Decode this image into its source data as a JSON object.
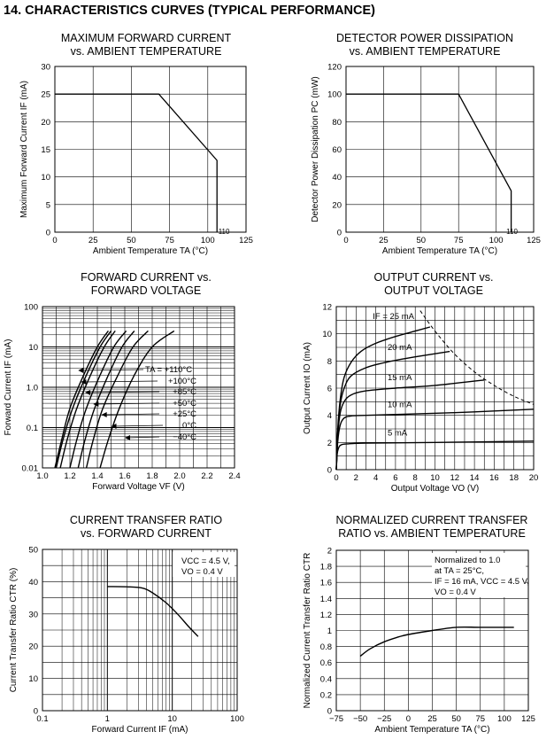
{
  "page_title": "14.  CHARACTERISTICS CURVES (TYPICAL PERFORMANCE)",
  "chart_data": [
    {
      "type": "line",
      "title1": "MAXIMUM FORWARD CURRENT",
      "title2": "vs. AMBIENT TEMPERATURE",
      "xlabel": "Ambient Temperature  TA (°C)",
      "ylabel": "Maximum Forward Current  IF (mA)",
      "xlim": [
        0,
        125
      ],
      "ylim": [
        0,
        30
      ],
      "x_ticks": [
        0,
        25,
        50,
        75,
        100,
        125
      ],
      "y_ticks": [
        0,
        5,
        10,
        15,
        20,
        25,
        30
      ],
      "x_ticks_text": [
        "0",
        "25",
        "50",
        "75",
        "100",
        "125"
      ],
      "y_ticks_text": [
        "0",
        "5",
        "10",
        "15",
        "20",
        "25",
        "30"
      ],
      "extra_tick": {
        "value": 110,
        "label": "110"
      },
      "grid": true,
      "series": [
        {
          "x": [
            0,
            68,
            106,
            106
          ],
          "y": [
            25,
            25,
            13,
            0
          ]
        }
      ]
    },
    {
      "type": "line",
      "title1": "DETECTOR POWER DISSIPATION",
      "title2": "vs. AMBIENT TEMPERATURE",
      "xlabel": "Ambient Temperature  TA (°C)",
      "ylabel": "Detector Power Dissipation  PC (mW)",
      "xlim": [
        0,
        125
      ],
      "ylim": [
        0,
        120
      ],
      "x_ticks": [
        0,
        25,
        50,
        75,
        100,
        125
      ],
      "y_ticks": [
        0,
        20,
        40,
        60,
        80,
        100,
        120
      ],
      "x_ticks_text": [
        "0",
        "25",
        "50",
        "75",
        "100",
        "125"
      ],
      "y_ticks_text": [
        "0",
        "20",
        "40",
        "60",
        "80",
        "100",
        "120"
      ],
      "extra_tick": {
        "value": 110,
        "label": "110"
      },
      "grid": true,
      "series": [
        {
          "x": [
            0,
            75,
            110,
            110
          ],
          "y": [
            100,
            100,
            30,
            0
          ]
        }
      ]
    },
    {
      "type": "line",
      "title1": "FORWARD CURRENT vs.",
      "title2": "FORWARD VOLTAGE",
      "xlabel": "Forward Voltage  VF (V)",
      "ylabel": "Forward Current  IF (mA)",
      "xlim": [
        1.0,
        2.4
      ],
      "ylim": [
        0.01,
        100
      ],
      "yscale": "log",
      "x_ticks": [
        1.0,
        1.2,
        1.4,
        1.6,
        1.8,
        2.0,
        2.2,
        2.4
      ],
      "x_ticks_text": [
        "1.0",
        "1.2",
        "1.4",
        "1.6",
        "1.8",
        "2.0",
        "2.2",
        "2.4"
      ],
      "y_ticks": [
        0.01,
        0.1,
        1.0,
        10,
        100
      ],
      "y_ticks_text": [
        "0.01",
        "0.1",
        "1.0",
        "10",
        "100"
      ],
      "grid": true,
      "annotations": [
        "TA = +110°C",
        "+100°C",
        "+85°C",
        "+50°C",
        "+25°C",
        "0°C",
        "−40°C"
      ],
      "series": [
        {
          "name": "TA = +110°C",
          "x": [
            1.09,
            1.14,
            1.2,
            1.3,
            1.4,
            1.48
          ],
          "y": [
            0.01,
            0.05,
            0.3,
            2.0,
            10,
            25
          ]
        },
        {
          "name": "+100°C",
          "x": [
            1.1,
            1.15,
            1.22,
            1.32,
            1.42,
            1.5
          ],
          "y": [
            0.01,
            0.05,
            0.3,
            2.0,
            10,
            25
          ]
        },
        {
          "name": "+85°C",
          "x": [
            1.13,
            1.18,
            1.25,
            1.35,
            1.45,
            1.53
          ],
          "y": [
            0.01,
            0.05,
            0.3,
            2.0,
            10,
            25
          ]
        },
        {
          "name": "+50°C",
          "x": [
            1.2,
            1.25,
            1.32,
            1.42,
            1.52,
            1.61
          ],
          "y": [
            0.01,
            0.05,
            0.3,
            2.0,
            10,
            25
          ]
        },
        {
          "name": "+25°C",
          "x": [
            1.26,
            1.31,
            1.38,
            1.48,
            1.58,
            1.67
          ],
          "y": [
            0.01,
            0.05,
            0.3,
            2.0,
            10,
            25
          ]
        },
        {
          "name": "0°C",
          "x": [
            1.32,
            1.37,
            1.44,
            1.55,
            1.66,
            1.77
          ],
          "y": [
            0.01,
            0.05,
            0.3,
            2.0,
            10,
            25
          ]
        },
        {
          "name": "−40°C",
          "x": [
            1.42,
            1.48,
            1.56,
            1.67,
            1.8,
            1.96
          ],
          "y": [
            0.01,
            0.05,
            0.3,
            2.0,
            10,
            25
          ]
        }
      ]
    },
    {
      "type": "line",
      "title1": "OUTPUT CURRENT vs.",
      "title2": "OUTPUT VOLTAGE",
      "xlabel": "Output Voltage  VO (V)",
      "ylabel": "Output Current  IO (mA)",
      "xlim": [
        0,
        20
      ],
      "ylim": [
        0,
        12
      ],
      "x_ticks": [
        0,
        2,
        4,
        6,
        8,
        10,
        12,
        14,
        16,
        18,
        20
      ],
      "x_ticks_text": [
        "0",
        "2",
        "4",
        "6",
        "8",
        "10",
        "12",
        "14",
        "16",
        "18",
        "20"
      ],
      "y_ticks": [
        0,
        2,
        4,
        6,
        8,
        10,
        12
      ],
      "y_ticks_text": [
        "0",
        "2",
        "4",
        "6",
        "8",
        "10",
        "12"
      ],
      "grid": true,
      "annotations": [
        "IF = 25 mA",
        "20 mA",
        "15 mA",
        "10 mA",
        "5 mA"
      ],
      "series": [
        {
          "name": "IF = 25 mA",
          "x": [
            0,
            0.15,
            0.4,
            0.8,
            1.5,
            2.5,
            4,
            6,
            8,
            9.5
          ],
          "y": [
            0,
            3.0,
            5.2,
            6.8,
            7.9,
            8.7,
            9.3,
            9.8,
            10.2,
            10.5
          ]
        },
        {
          "name": "20 mA",
          "x": [
            0,
            0.15,
            0.4,
            0.8,
            1.5,
            3,
            5,
            8,
            11.5
          ],
          "y": [
            0,
            2.8,
            4.8,
            6.0,
            6.9,
            7.5,
            7.9,
            8.3,
            8.7
          ]
        },
        {
          "name": "15 mA",
          "x": [
            0,
            0.15,
            0.4,
            0.8,
            1.5,
            3,
            6,
            10,
            15
          ],
          "y": [
            0,
            2.5,
            4.2,
            5.0,
            5.5,
            5.8,
            6.0,
            6.2,
            6.6
          ]
        },
        {
          "name": "10 mA",
          "x": [
            0,
            0.15,
            0.4,
            0.8,
            1.5,
            3,
            8,
            14,
            20
          ],
          "y": [
            0,
            2.1,
            3.3,
            3.8,
            3.95,
            4.0,
            4.1,
            4.25,
            4.45
          ]
        },
        {
          "name": "5 mA",
          "x": [
            0,
            0.1,
            0.3,
            0.6,
            1.2,
            3,
            10,
            20
          ],
          "y": [
            0,
            1.2,
            1.7,
            1.85,
            1.9,
            1.95,
            2.0,
            2.1
          ]
        },
        {
          "name": "limit",
          "dashed": true,
          "x": [
            8.5,
            10,
            12,
            14,
            16,
            18,
            20
          ],
          "y": [
            11.7,
            10.2,
            8.5,
            7.2,
            6.2,
            5.4,
            4.8
          ]
        }
      ]
    },
    {
      "type": "line",
      "title1": "CURRENT TRANSFER RATIO",
      "title2": "vs. FORWARD CURRENT",
      "xlabel": "Forward Current  IF (mA)",
      "ylabel": "Current Transfer Ratio  CTR (%)",
      "xlim": [
        0.1,
        100
      ],
      "xscale": "log",
      "ylim": [
        0,
        50
      ],
      "x_ticks": [
        0.1,
        1,
        10,
        100
      ],
      "x_ticks_text": [
        "0.1",
        "1",
        "10",
        "100"
      ],
      "y_ticks": [
        0,
        10,
        20,
        30,
        40,
        50
      ],
      "y_ticks_text": [
        "0",
        "10",
        "20",
        "30",
        "40",
        "50"
      ],
      "grid": true,
      "annotations": [
        "VCC = 4.5 V,",
        "VO = 0.4 V"
      ],
      "series": [
        {
          "x": [
            1,
            2,
            3.5,
            5,
            8,
            12,
            18,
            25
          ],
          "y": [
            38.5,
            38.4,
            38.0,
            36.5,
            33.5,
            30,
            26,
            23
          ]
        }
      ]
    },
    {
      "type": "line",
      "title1": "NORMALIZED CURRENT TRANSFER",
      "title2": "RATIO vs. AMBIENT TEMPERATURE",
      "xlabel": "Ambient Temperature  TA (°C)",
      "ylabel": "Normalized Current Transfer Ratio  CTR",
      "xlim": [
        -75,
        125
      ],
      "ylim": [
        0,
        2
      ],
      "x_ticks": [
        -75,
        -50,
        -25,
        0,
        25,
        50,
        75,
        100,
        125
      ],
      "x_ticks_text": [
        "−75",
        "−50",
        "−25",
        "0",
        "25",
        "50",
        "75",
        "100",
        "125"
      ],
      "y_ticks": [
        0,
        0.2,
        0.4,
        0.6,
        0.8,
        1,
        1.2,
        1.4,
        1.6,
        1.8,
        2
      ],
      "y_ticks_text": [
        "0",
        "0.2",
        "0.4",
        "0.6",
        "0.8",
        "1",
        "1.2",
        "1.4",
        "1.6",
        "1.8",
        "2"
      ],
      "grid": true,
      "annotations": [
        "Normalized to 1.0",
        "at TA = 25°C,",
        "IF = 16 mA, VCC = 4.5 V,",
        "VO = 0.4 V"
      ],
      "series": [
        {
          "x": [
            -50,
            -40,
            -25,
            -10,
            0,
            25,
            50,
            75,
            110
          ],
          "y": [
            0.68,
            0.77,
            0.86,
            0.92,
            0.95,
            1.0,
            1.04,
            1.04,
            1.04
          ]
        }
      ]
    }
  ]
}
